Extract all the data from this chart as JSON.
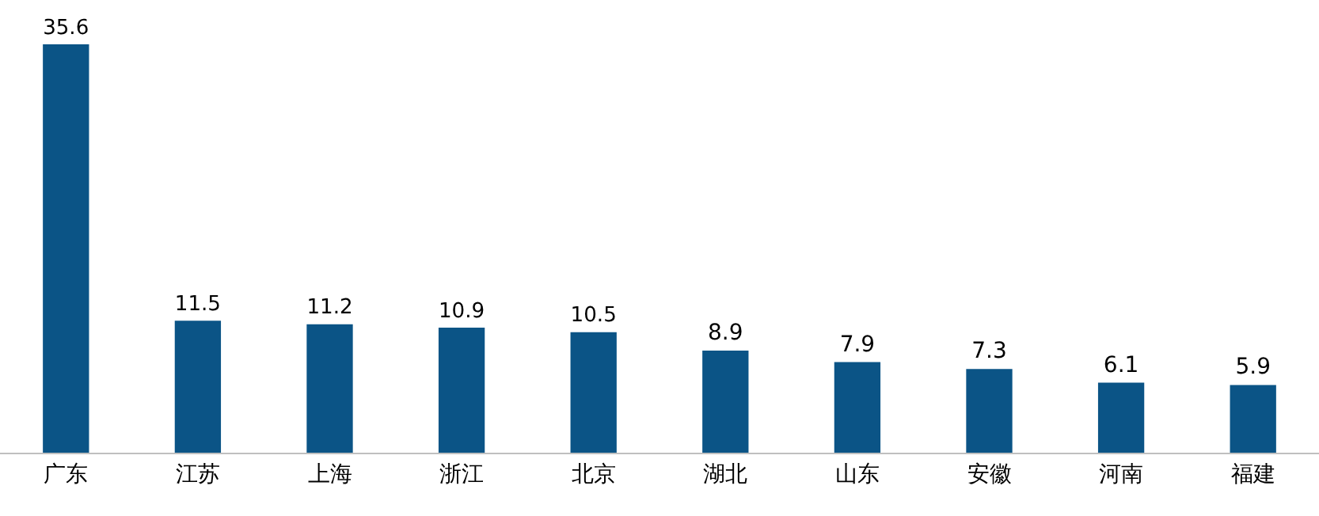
{
  "chart_data": {
    "type": "bar",
    "categories": [
      "广东",
      "江苏",
      "上海",
      "浙江",
      "北京",
      "湖北",
      "山东",
      "安徽",
      "河南",
      "福建"
    ],
    "values": [
      35.6,
      11.5,
      11.2,
      10.9,
      10.5,
      8.9,
      7.9,
      7.3,
      6.1,
      5.9
    ],
    "color": "#0b5486",
    "data_labels": true
  }
}
